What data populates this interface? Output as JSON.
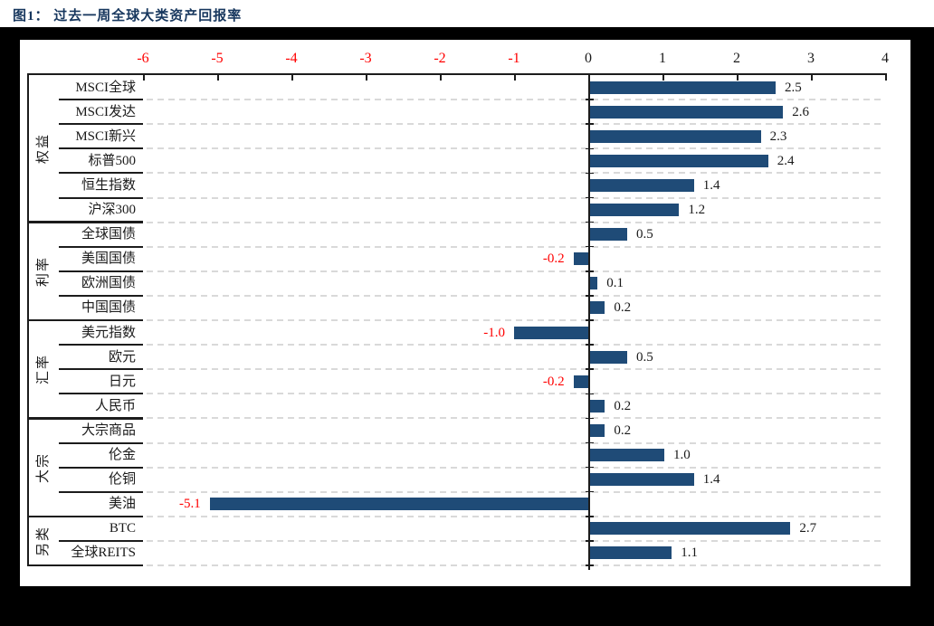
{
  "figure_title": "图1：  过去一周全球大类资产回报率",
  "chart_data": {
    "type": "bar",
    "orientation": "horizontal",
    "title": "过去一周全球大类资产回报率",
    "x_axis": {
      "position": "top",
      "min": -6,
      "max": 4,
      "ticks": [
        -6,
        -5,
        -4,
        -3,
        -2,
        -1,
        0,
        1,
        2,
        3,
        4
      ]
    },
    "grid": "dashed-horizontal",
    "legend": false,
    "groups": [
      {
        "label": "权益",
        "categories": [
          "MSCI全球",
          "MSCI发达",
          "MSCI新兴",
          "标普500",
          "恒生指数",
          "沪深300"
        ],
        "values": [
          2.5,
          2.6,
          2.3,
          2.4,
          1.4,
          1.2
        ]
      },
      {
        "label": "利率",
        "categories": [
          "全球国债",
          "美国国债",
          "欧洲国债",
          "中国国债"
        ],
        "values": [
          0.5,
          -0.2,
          0.1,
          0.2
        ]
      },
      {
        "label": "汇率",
        "categories": [
          "美元指数",
          "欧元",
          "日元",
          "人民币"
        ],
        "values": [
          -1.0,
          0.5,
          -0.2,
          0.2
        ]
      },
      {
        "label": "大宗",
        "categories": [
          "大宗商品",
          "伦金",
          "伦铜",
          "美油"
        ],
        "values": [
          0.2,
          1.0,
          1.4,
          -5.1
        ]
      },
      {
        "label": "另类",
        "categories": [
          "BTC",
          "全球REITS"
        ],
        "values": [
          2.7,
          1.1
        ]
      }
    ],
    "colors": {
      "bar": "#1F4B77",
      "negative_label": "#FF0000",
      "positive_label": "#1A1A1A",
      "gridline": "#D9D9D9",
      "axis": "#1C1C1C",
      "title": "#17375E",
      "frame_background": "#000000",
      "panel_background": "#FFFFFF"
    }
  }
}
